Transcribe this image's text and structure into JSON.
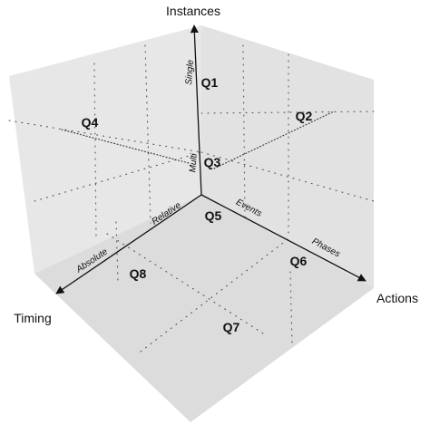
{
  "axes": {
    "instances": {
      "title": "Instances",
      "near_label": "Multi",
      "far_label": "Single"
    },
    "actions": {
      "title": "Actions",
      "near_label": "Events",
      "far_label": "Phases"
    },
    "timing": {
      "title": "Timing",
      "near_label": "Relative",
      "far_label": "Absolute"
    }
  },
  "quadrants": [
    "Q1",
    "Q2",
    "Q3",
    "Q4",
    "Q5",
    "Q6",
    "Q7",
    "Q8"
  ],
  "colors": {
    "panel_light": "#ececec",
    "panel_mid": "#e2e2e2",
    "panel_dark": "#dadada",
    "ink": "#111111"
  }
}
